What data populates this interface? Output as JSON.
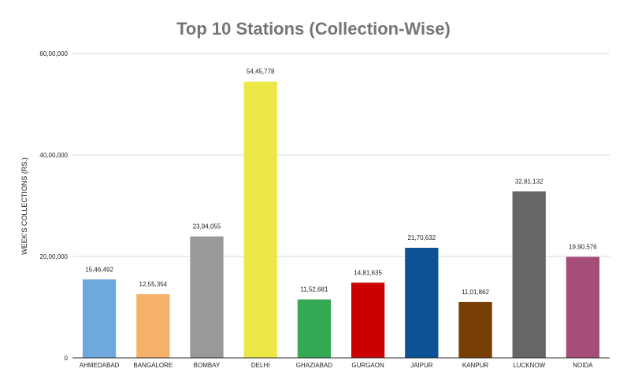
{
  "chart_data": {
    "type": "bar",
    "title": "Top 10 Stations (Collection-Wise)",
    "xlabel": "",
    "ylabel": "WEEK'S COLLECTIONS (RS.)",
    "ylim": [
      0,
      6000000
    ],
    "yticks": [
      0,
      2000000,
      4000000,
      6000000
    ],
    "ytick_labels": [
      "0",
      "20,00,000",
      "40,00,000",
      "60,00,000"
    ],
    "grid": true,
    "legend": "none",
    "categories": [
      "AHMEDABAD",
      "BANGALORE",
      "BOMBAY",
      "DELHI",
      "GHAZIABAD",
      "GURGAON",
      "JAIPUR",
      "KANPUR",
      "LUCKNOW",
      "NOIDA"
    ],
    "values": [
      1546492,
      1255354,
      2394055,
      5445778,
      1152681,
      1481635,
      2170632,
      1101862,
      3281132,
      1990576
    ],
    "value_labels": [
      "15,46,492",
      "12,55,354",
      "23,94,055",
      "54,45,778",
      "11,52,681",
      "14,81,635",
      "21,70,632",
      "11,01,862",
      "32,81,132",
      "19,90,576"
    ],
    "colors": [
      "#6fa8dc",
      "#f6b26b",
      "#999999",
      "#ebe848",
      "#34a853",
      "#cc0000",
      "#0b5394",
      "#783f04",
      "#666666",
      "#a64d79"
    ]
  }
}
